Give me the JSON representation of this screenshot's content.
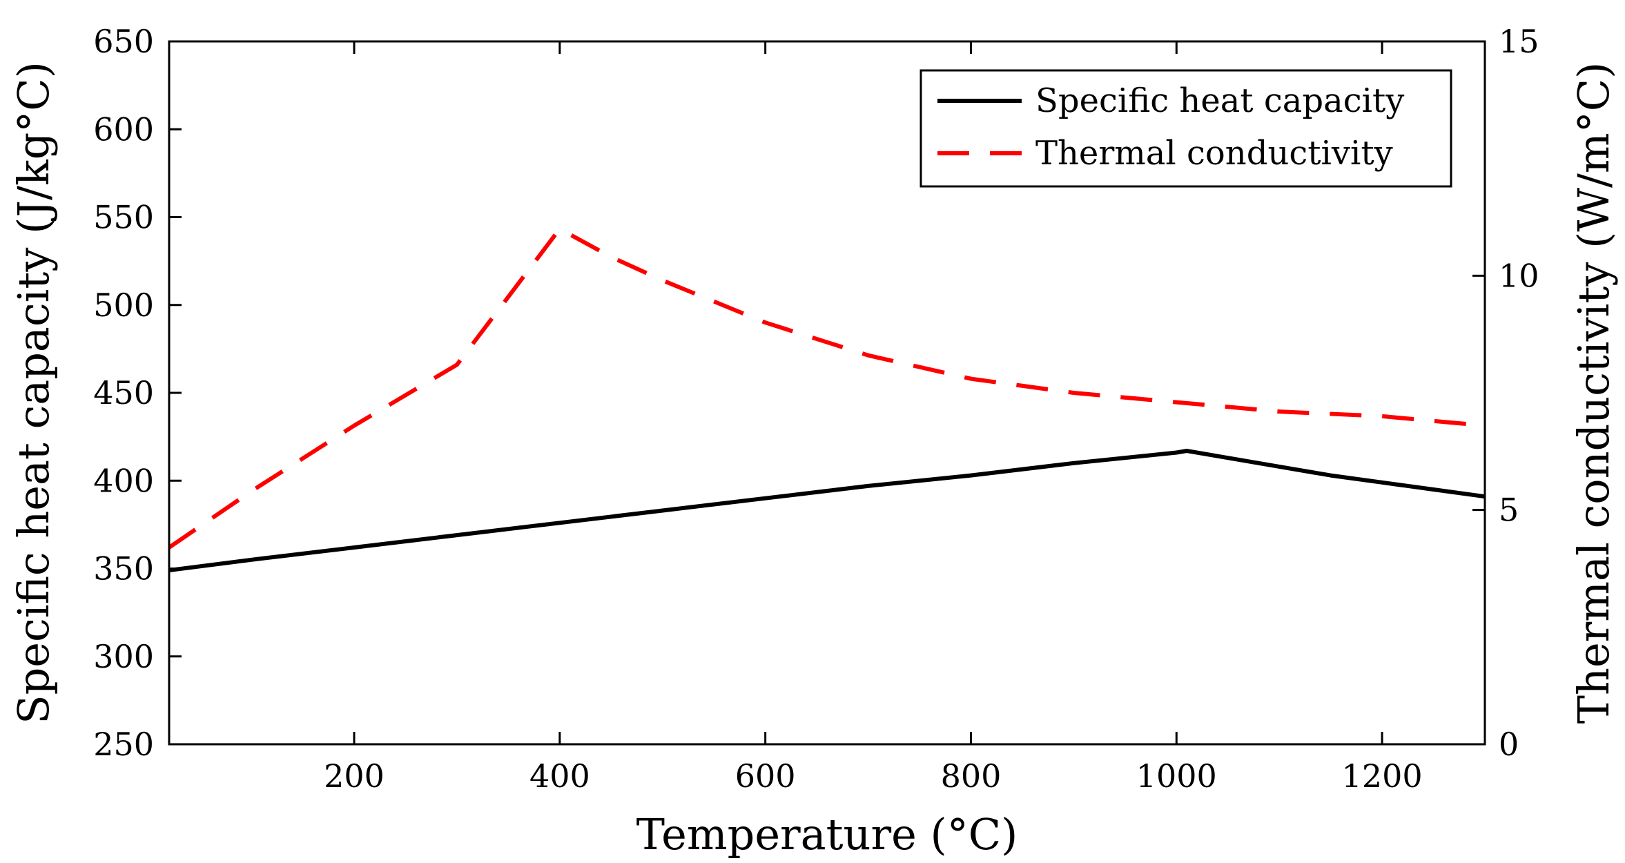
{
  "chart_data": {
    "type": "line",
    "title": "",
    "xlabel": "Temperature (°C)",
    "ylabel_left": "Specific heat capacity (J/kg°C)",
    "ylabel_right": "Thermal conductivity (W/m°C)",
    "xlim": [
      20,
      1300
    ],
    "ylim_left": [
      250,
      650
    ],
    "ylim_right": [
      0,
      15
    ],
    "xticks": [
      {
        "value": 200,
        "label": "200"
      },
      {
        "value": 400,
        "label": "400"
      },
      {
        "value": 600,
        "label": "600"
      },
      {
        "value": 800,
        "label": "800"
      },
      {
        "value": 1000,
        "label": "1000"
      },
      {
        "value": 1200,
        "label": "1200"
      }
    ],
    "yticks_left": [
      {
        "value": 250,
        "label": "250"
      },
      {
        "value": 300,
        "label": "300"
      },
      {
        "value": 350,
        "label": "350"
      },
      {
        "value": 400,
        "label": "400"
      },
      {
        "value": 450,
        "label": "450"
      },
      {
        "value": 500,
        "label": "500"
      },
      {
        "value": 550,
        "label": "550"
      },
      {
        "value": 600,
        "label": "600"
      },
      {
        "value": 650,
        "label": "650"
      }
    ],
    "yticks_right": [
      {
        "value": 0,
        "label": "0"
      },
      {
        "value": 5,
        "label": "5"
      },
      {
        "value": 10,
        "label": "10"
      },
      {
        "value": 15,
        "label": "15"
      }
    ],
    "legend_position": "top-right",
    "grid": false,
    "series": [
      {
        "name": "Specific heat capacity",
        "axis": "left",
        "color": "#000000",
        "style": "solid",
        "x": [
          20,
          100,
          200,
          300,
          400,
          500,
          600,
          700,
          800,
          900,
          1000,
          1010,
          1050,
          1100,
          1150,
          1200,
          1250,
          1300
        ],
        "y": [
          349,
          355,
          362,
          369,
          376,
          383,
          390,
          397,
          403,
          410,
          416,
          417,
          413,
          408,
          403,
          399,
          395,
          391
        ]
      },
      {
        "name": "Thermal conductivity",
        "axis": "right",
        "color": "#ff0000",
        "style": "dashed",
        "x": [
          20,
          100,
          200,
          300,
          400,
          450,
          500,
          600,
          700,
          800,
          900,
          1000,
          1100,
          1200,
          1300
        ],
        "y": [
          4.2,
          5.4,
          6.8,
          8.1,
          11.0,
          10.4,
          9.9,
          9.0,
          8.3,
          7.8,
          7.5,
          7.3,
          7.1,
          7.0,
          6.8
        ]
      }
    ]
  }
}
